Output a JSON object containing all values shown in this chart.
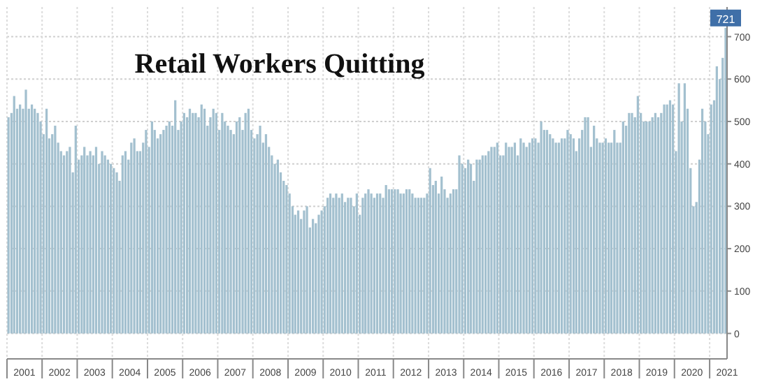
{
  "chart_data": {
    "type": "bar",
    "title": "Retail Workers Quitting",
    "xlim": [
      "2001-01",
      "2021-07"
    ],
    "ylim": [
      -60,
      770
    ],
    "yticks": [
      0,
      100,
      200,
      300,
      400,
      500,
      600,
      700
    ],
    "xticks": [
      {
        "value": "2001-01",
        "label": null
      },
      {
        "value": "2001-07",
        "label": "2001"
      },
      {
        "value": "2002-01",
        "label": null
      },
      {
        "value": "2002-07",
        "label": "2002"
      },
      {
        "value": "2003-01",
        "label": null
      },
      {
        "value": "2003-07",
        "label": "2003"
      },
      {
        "value": "2004-01",
        "label": null
      },
      {
        "value": "2004-07",
        "label": "2004"
      },
      {
        "value": "2005-01",
        "label": null
      },
      {
        "value": "2005-07",
        "label": "2005"
      },
      {
        "value": "2006-01",
        "label": null
      },
      {
        "value": "2006-07",
        "label": "2006"
      },
      {
        "value": "2007-01",
        "label": null
      },
      {
        "value": "2007-07",
        "label": "2007"
      },
      {
        "value": "2008-01",
        "label": null
      },
      {
        "value": "2008-07",
        "label": "2008"
      },
      {
        "value": "2009-01",
        "label": null
      },
      {
        "value": "2009-07",
        "label": "2009"
      },
      {
        "value": "2010-01",
        "label": null
      },
      {
        "value": "2010-07",
        "label": "2010"
      },
      {
        "value": "2011-01",
        "label": null
      },
      {
        "value": "2011-07",
        "label": "2011"
      },
      {
        "value": "2012-01",
        "label": null
      },
      {
        "value": "2012-07",
        "label": "2012"
      },
      {
        "value": "2013-01",
        "label": null
      },
      {
        "value": "2013-07",
        "label": "2013"
      },
      {
        "value": "2014-01",
        "label": null
      },
      {
        "value": "2014-07",
        "label": "2014"
      },
      {
        "value": "2015-01",
        "label": null
      },
      {
        "value": "2015-07",
        "label": "2015"
      },
      {
        "value": "2016-01",
        "label": null
      },
      {
        "value": "2016-07",
        "label": "2016"
      },
      {
        "value": "2017-01",
        "label": null
      },
      {
        "value": "2017-07",
        "label": "2017"
      },
      {
        "value": "2018-01",
        "label": null
      },
      {
        "value": "2018-07",
        "label": "2018"
      },
      {
        "value": "2019-01",
        "label": null
      },
      {
        "value": "2019-07",
        "label": "2019"
      },
      {
        "value": "2020-01",
        "label": null
      },
      {
        "value": "2020-07",
        "label": "2020"
      },
      {
        "value": "2021-01",
        "label": null
      },
      {
        "value": "2021-07",
        "label": "2021"
      }
    ],
    "grid": true,
    "series": [
      {
        "color": "#a3c0cf",
        "x": [
          "2001-01",
          "2001-02",
          "2001-03",
          "2001-04",
          "2001-05",
          "2001-06",
          "2001-07",
          "2001-08",
          "2001-09",
          "2001-10",
          "2001-11",
          "2001-12",
          "2002-01",
          "2002-02",
          "2002-03",
          "2002-04",
          "2002-05",
          "2002-06",
          "2002-07",
          "2002-08",
          "2002-09",
          "2002-10",
          "2002-11",
          "2002-12",
          "2003-01",
          "2003-02",
          "2003-03",
          "2003-04",
          "2003-05",
          "2003-06",
          "2003-07",
          "2003-08",
          "2003-09",
          "2003-10",
          "2003-11",
          "2003-12",
          "2004-01",
          "2004-02",
          "2004-03",
          "2004-04",
          "2004-05",
          "2004-06",
          "2004-07",
          "2004-08",
          "2004-09",
          "2004-10",
          "2004-11",
          "2004-12",
          "2005-01",
          "2005-02",
          "2005-03",
          "2005-04",
          "2005-05",
          "2005-06",
          "2005-07",
          "2005-08",
          "2005-09",
          "2005-10",
          "2005-11",
          "2005-12",
          "2006-01",
          "2006-02",
          "2006-03",
          "2006-04",
          "2006-05",
          "2006-06",
          "2006-07",
          "2006-08",
          "2006-09",
          "2006-10",
          "2006-11",
          "2006-12",
          "2007-01",
          "2007-02",
          "2007-03",
          "2007-04",
          "2007-05",
          "2007-06",
          "2007-07",
          "2007-08",
          "2007-09",
          "2007-10",
          "2007-11",
          "2007-12",
          "2008-01",
          "2008-02",
          "2008-03",
          "2008-04",
          "2008-05",
          "2008-06",
          "2008-07",
          "2008-08",
          "2008-09",
          "2008-10",
          "2008-11",
          "2008-12",
          "2009-01",
          "2009-02",
          "2009-03",
          "2009-04",
          "2009-05",
          "2009-06",
          "2009-07",
          "2009-08",
          "2009-09",
          "2009-10",
          "2009-11",
          "2009-12",
          "2010-01",
          "2010-02",
          "2010-03",
          "2010-04",
          "2010-05",
          "2010-06",
          "2010-07",
          "2010-08",
          "2010-09",
          "2010-10",
          "2010-11",
          "2010-12",
          "2011-01",
          "2011-02",
          "2011-03",
          "2011-04",
          "2011-05",
          "2011-06",
          "2011-07",
          "2011-08",
          "2011-09",
          "2011-10",
          "2011-11",
          "2011-12",
          "2012-01",
          "2012-02",
          "2012-03",
          "2012-04",
          "2012-05",
          "2012-06",
          "2012-07",
          "2012-08",
          "2012-09",
          "2012-10",
          "2012-11",
          "2012-12",
          "2013-01",
          "2013-02",
          "2013-03",
          "2013-04",
          "2013-05",
          "2013-06",
          "2013-07",
          "2013-08",
          "2013-09",
          "2013-10",
          "2013-11",
          "2013-12",
          "2014-01",
          "2014-02",
          "2014-03",
          "2014-04",
          "2014-05",
          "2014-06",
          "2014-07",
          "2014-08",
          "2014-09",
          "2014-10",
          "2014-11",
          "2014-12",
          "2015-01",
          "2015-02",
          "2015-03",
          "2015-04",
          "2015-05",
          "2015-06",
          "2015-07",
          "2015-08",
          "2015-09",
          "2015-10",
          "2015-11",
          "2015-12",
          "2016-01",
          "2016-02",
          "2016-03",
          "2016-04",
          "2016-05",
          "2016-06",
          "2016-07",
          "2016-08",
          "2016-09",
          "2016-10",
          "2016-11",
          "2016-12",
          "2017-01",
          "2017-02",
          "2017-03",
          "2017-04",
          "2017-05",
          "2017-06",
          "2017-07",
          "2017-08",
          "2017-09",
          "2017-10",
          "2017-11",
          "2017-12",
          "2018-01",
          "2018-02",
          "2018-03",
          "2018-04",
          "2018-05",
          "2018-06",
          "2018-07",
          "2018-08",
          "2018-09",
          "2018-10",
          "2018-11",
          "2018-12",
          "2019-01",
          "2019-02",
          "2019-03",
          "2019-04",
          "2019-05",
          "2019-06",
          "2019-07",
          "2019-08",
          "2019-09",
          "2019-10",
          "2019-11",
          "2019-12",
          "2020-01",
          "2020-02",
          "2020-03",
          "2020-04",
          "2020-05",
          "2020-06",
          "2020-07",
          "2020-08",
          "2020-09",
          "2020-10",
          "2020-11",
          "2020-12",
          "2021-01",
          "2021-02",
          "2021-03",
          "2021-04",
          "2021-05",
          "2021-06"
        ],
        "values": [
          510,
          520,
          560,
          530,
          540,
          530,
          575,
          530,
          540,
          530,
          520,
          500,
          470,
          530,
          460,
          470,
          490,
          450,
          430,
          420,
          430,
          440,
          380,
          490,
          410,
          420,
          440,
          420,
          430,
          420,
          440,
          400,
          430,
          420,
          410,
          400,
          390,
          380,
          360,
          420,
          430,
          410,
          450,
          460,
          430,
          430,
          450,
          480,
          440,
          500,
          480,
          460,
          470,
          480,
          490,
          500,
          490,
          550,
          480,
          500,
          520,
          510,
          530,
          520,
          520,
          510,
          540,
          530,
          490,
          510,
          530,
          520,
          480,
          520,
          500,
          490,
          480,
          470,
          500,
          510,
          480,
          520,
          530,
          480,
          460,
          470,
          490,
          450,
          470,
          440,
          420,
          400,
          410,
          380,
          360,
          350,
          330,
          300,
          280,
          290,
          270,
          290,
          300,
          250,
          270,
          260,
          280,
          290,
          300,
          320,
          330,
          320,
          330,
          320,
          330,
          310,
          320,
          320,
          300,
          330,
          280,
          320,
          330,
          340,
          330,
          320,
          330,
          330,
          320,
          350,
          340,
          340,
          340,
          340,
          330,
          330,
          340,
          340,
          330,
          320,
          320,
          320,
          320,
          330,
          390,
          350,
          360,
          330,
          370,
          340,
          320,
          330,
          340,
          340,
          420,
          400,
          390,
          410,
          400,
          360,
          410,
          410,
          420,
          420,
          430,
          440,
          440,
          450,
          420,
          420,
          450,
          440,
          440,
          450,
          420,
          460,
          450,
          440,
          450,
          460,
          460,
          450,
          500,
          480,
          480,
          470,
          460,
          450,
          450,
          460,
          460,
          480,
          470,
          460,
          430,
          460,
          480,
          510,
          510,
          440,
          490,
          460,
          450,
          450,
          460,
          450,
          450,
          480,
          450,
          450,
          500,
          490,
          520,
          520,
          510,
          560,
          520,
          500,
          500,
          500,
          510,
          520,
          510,
          520,
          540,
          540,
          550,
          540,
          430,
          590,
          500,
          590,
          530,
          390,
          300,
          310,
          410,
          530,
          500,
          470,
          540,
          550,
          630,
          600,
          650,
          721
        ],
        "value_labels": [
          null,
          null,
          null,
          null,
          null,
          null,
          null,
          null,
          null,
          null,
          null,
          null,
          null,
          null,
          null,
          null,
          null,
          null,
          null,
          null,
          null,
          null,
          null,
          null,
          null,
          null,
          null,
          null,
          null,
          null,
          null,
          null,
          null,
          null,
          null,
          null,
          null,
          null,
          null,
          null,
          null,
          null,
          null,
          null,
          null,
          null,
          null,
          null,
          null,
          null,
          null,
          null,
          null,
          null,
          null,
          null,
          null,
          null,
          null,
          null,
          null,
          null,
          null,
          null,
          null,
          null,
          null,
          null,
          null,
          null,
          null,
          null,
          null,
          null,
          null,
          null,
          null,
          null,
          null,
          null,
          null,
          null,
          null,
          null,
          null,
          null,
          null,
          null,
          null,
          null,
          null,
          null,
          null,
          null,
          null,
          null,
          null,
          null,
          null,
          null,
          null,
          null,
          null,
          null,
          null,
          null,
          null,
          null,
          null,
          null,
          null,
          null,
          null,
          null,
          null,
          null,
          null,
          null,
          null,
          null,
          null,
          null,
          null,
          null,
          null,
          null,
          null,
          null,
          null,
          null,
          null,
          null,
          null,
          null,
          null,
          null,
          null,
          null,
          null,
          null,
          null,
          null,
          null,
          null,
          null,
          null,
          null,
          null,
          null,
          null,
          null,
          null,
          null,
          null,
          null,
          null,
          null,
          null,
          null,
          null,
          null,
          null,
          null,
          null,
          null,
          null,
          null,
          null,
          null,
          null,
          null,
          null,
          null,
          null,
          null,
          null,
          null,
          null,
          null,
          null,
          null,
          null,
          null,
          null,
          null,
          null,
          null,
          null,
          null,
          null,
          null,
          null,
          null,
          null,
          null,
          null,
          null,
          null,
          null,
          null,
          null,
          null,
          null,
          null,
          null,
          null,
          null,
          null,
          null,
          null,
          null,
          null,
          null,
          null,
          null,
          null,
          null,
          null,
          null,
          null,
          null,
          null,
          null,
          null,
          null,
          null,
          null,
          null,
          null,
          null,
          null,
          null,
          null,
          null,
          null,
          null,
          null,
          null,
          null,
          null,
          null,
          null,
          null,
          null,
          null,
          "721"
        ]
      }
    ]
  }
}
